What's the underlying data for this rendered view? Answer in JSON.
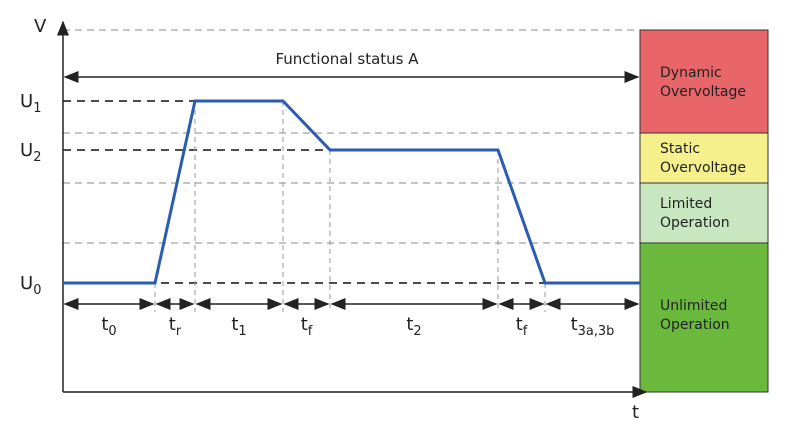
{
  "axes": {
    "y_label": "V",
    "x_label": "t"
  },
  "status": "Functional status A",
  "levels": [
    {
      "base": "U",
      "sub": "1"
    },
    {
      "base": "U",
      "sub": "2"
    },
    {
      "base": "U",
      "sub": "0"
    }
  ],
  "intervals": [
    {
      "base": "t",
      "sub": "0"
    },
    {
      "base": "t",
      "sub": "r"
    },
    {
      "base": "t",
      "sub": "1"
    },
    {
      "base": "t",
      "sub": "f"
    },
    {
      "base": "t",
      "sub": "2"
    },
    {
      "base": "t",
      "sub": "f"
    },
    {
      "base": "t",
      "sub": "3a,3b"
    }
  ],
  "zones": [
    {
      "line1": "Dynamic",
      "line2": "Overvoltage"
    },
    {
      "line1": "Static",
      "line2": "Overvoltage"
    },
    {
      "line1": "Limited",
      "line2": "Operation"
    },
    {
      "line1": "Unlimited",
      "line2": "Operation"
    }
  ]
}
